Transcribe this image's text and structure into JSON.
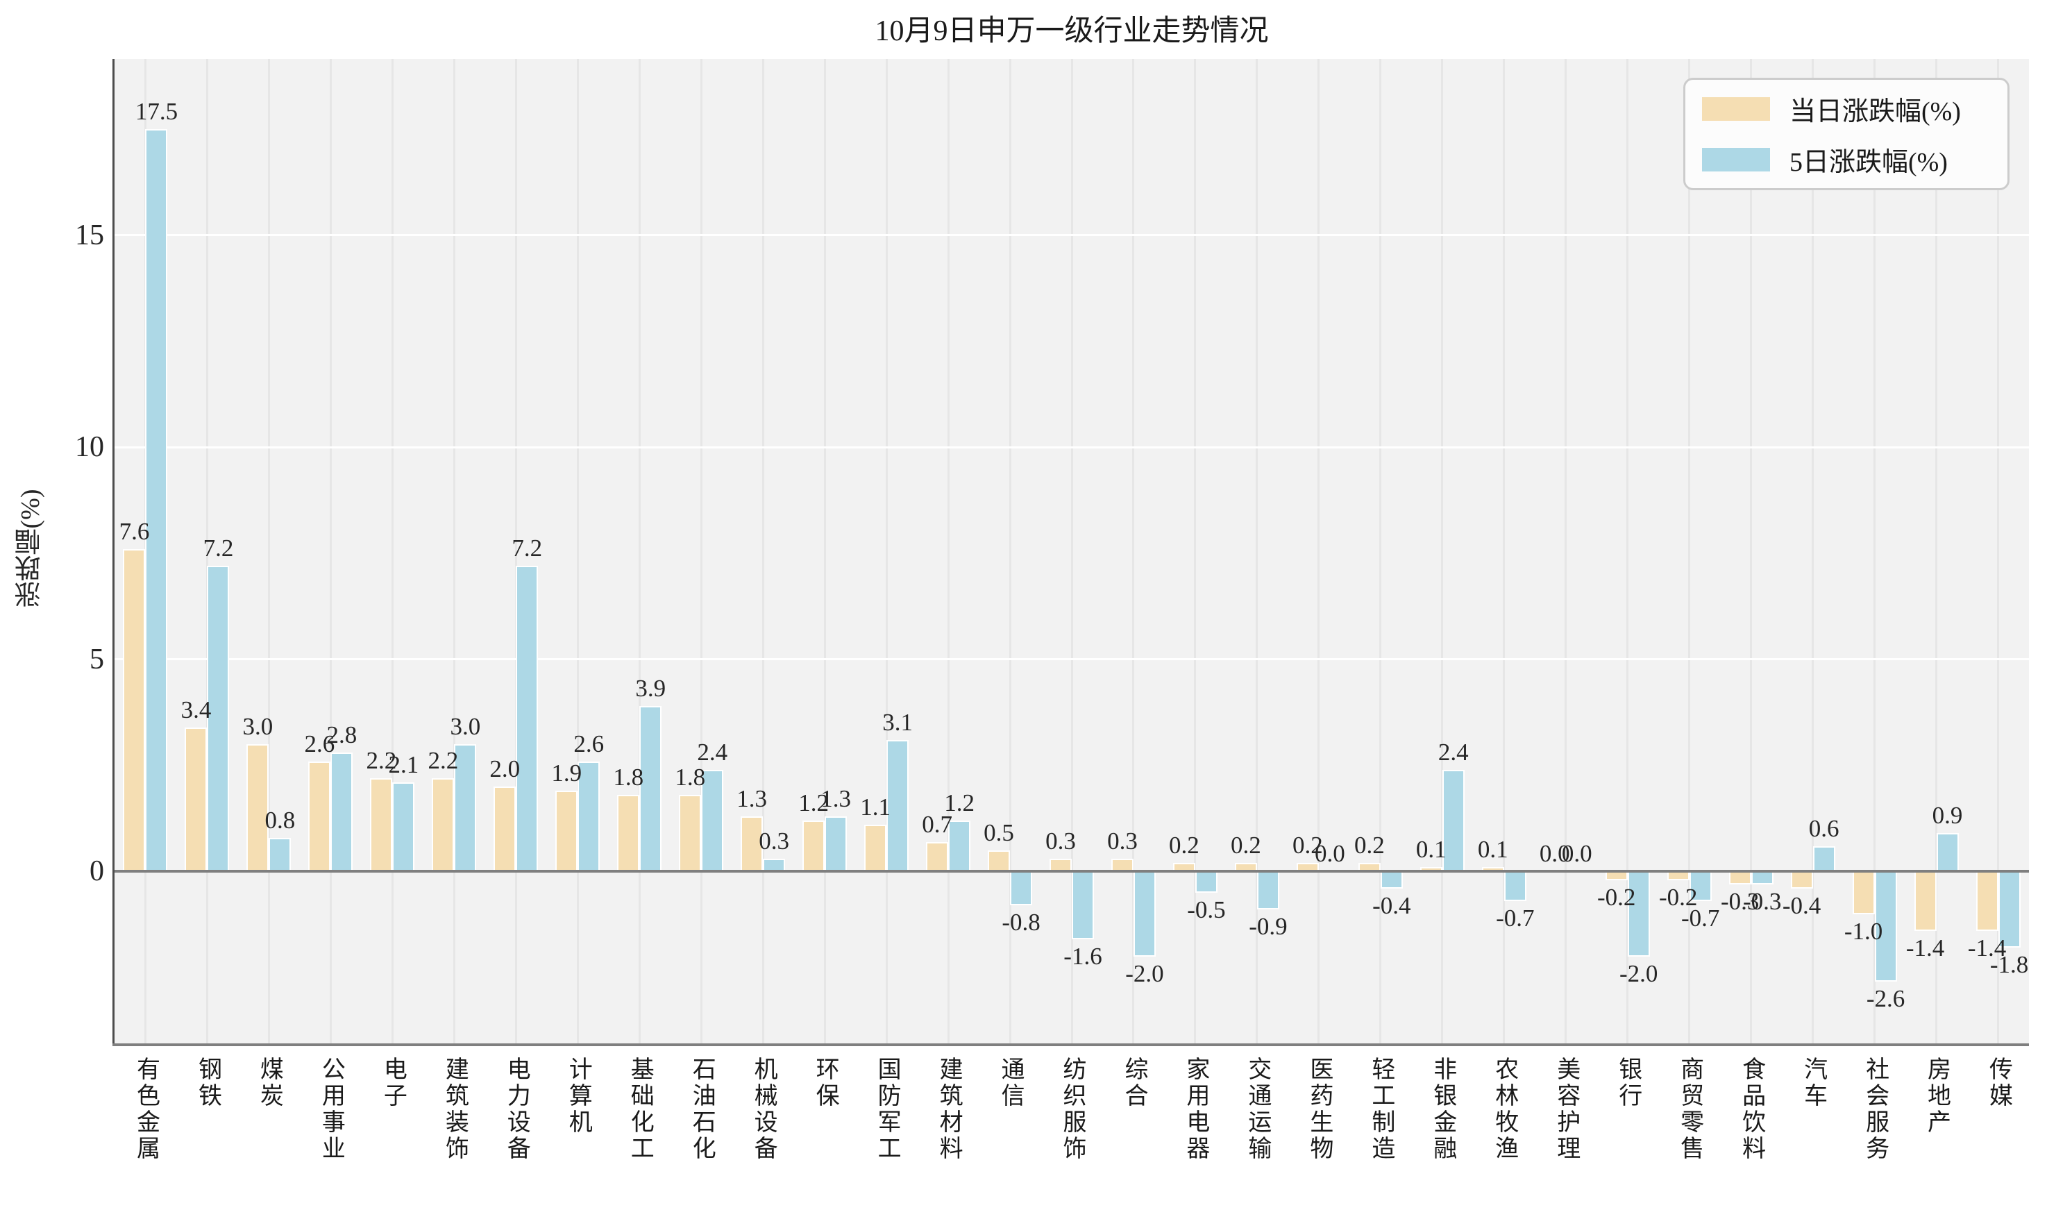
{
  "chart_data": {
    "type": "bar",
    "title": "10月9日申万一级行业走势情况",
    "xlabel": "",
    "ylabel": "涨跌幅(%)",
    "categories": [
      "有色金属",
      "钢铁",
      "煤炭",
      "公用事业",
      "电子",
      "建筑装饰",
      "电力设备",
      "计算机",
      "基础化工",
      "石油石化",
      "机械设备",
      "环保",
      "国防军工",
      "建筑材料",
      "通信",
      "纺织服饰",
      "综合",
      "家用电器",
      "交通运输",
      "医药生物",
      "轻工制造",
      "非银金融",
      "农林牧渔",
      "美容护理",
      "银行",
      "商贸零售",
      "食品饮料",
      "汽车",
      "社会服务",
      "房地产",
      "传媒"
    ],
    "series": [
      {
        "name": "当日涨跌幅(%)",
        "color": "#F5DEB3",
        "values": [
          7.6,
          3.4,
          3.0,
          2.6,
          2.2,
          2.2,
          2.0,
          1.9,
          1.8,
          1.8,
          1.3,
          1.2,
          1.1,
          0.7,
          0.5,
          0.3,
          0.3,
          0.2,
          0.2,
          0.2,
          0.2,
          0.1,
          0.1,
          0.0,
          -0.2,
          -0.2,
          -0.3,
          -0.4,
          -1.0,
          -1.4,
          -1.4
        ]
      },
      {
        "name": "5日涨跌幅(%)",
        "color": "#ADD8E6",
        "values": [
          17.5,
          7.2,
          0.8,
          2.8,
          2.1,
          3.0,
          7.2,
          2.6,
          3.9,
          2.4,
          0.3,
          1.3,
          3.1,
          1.2,
          -0.8,
          -1.6,
          -2.0,
          -0.5,
          -0.9,
          0.0,
          -0.4,
          2.4,
          -0.7,
          0.0,
          -2.0,
          -0.7,
          -0.3,
          0.6,
          -2.6,
          0.9,
          -1.8
        ]
      }
    ],
    "yticks": [
      0,
      5,
      10,
      15
    ],
    "ylim": [
      -4.05,
      19.15
    ],
    "grid": true,
    "legend_position": "upper right",
    "plot_background": "#f2f2f2",
    "bar_edge_color": "#ffffff",
    "zero_line_color": "#7f7f7f",
    "value_label_decimals": 1
  }
}
